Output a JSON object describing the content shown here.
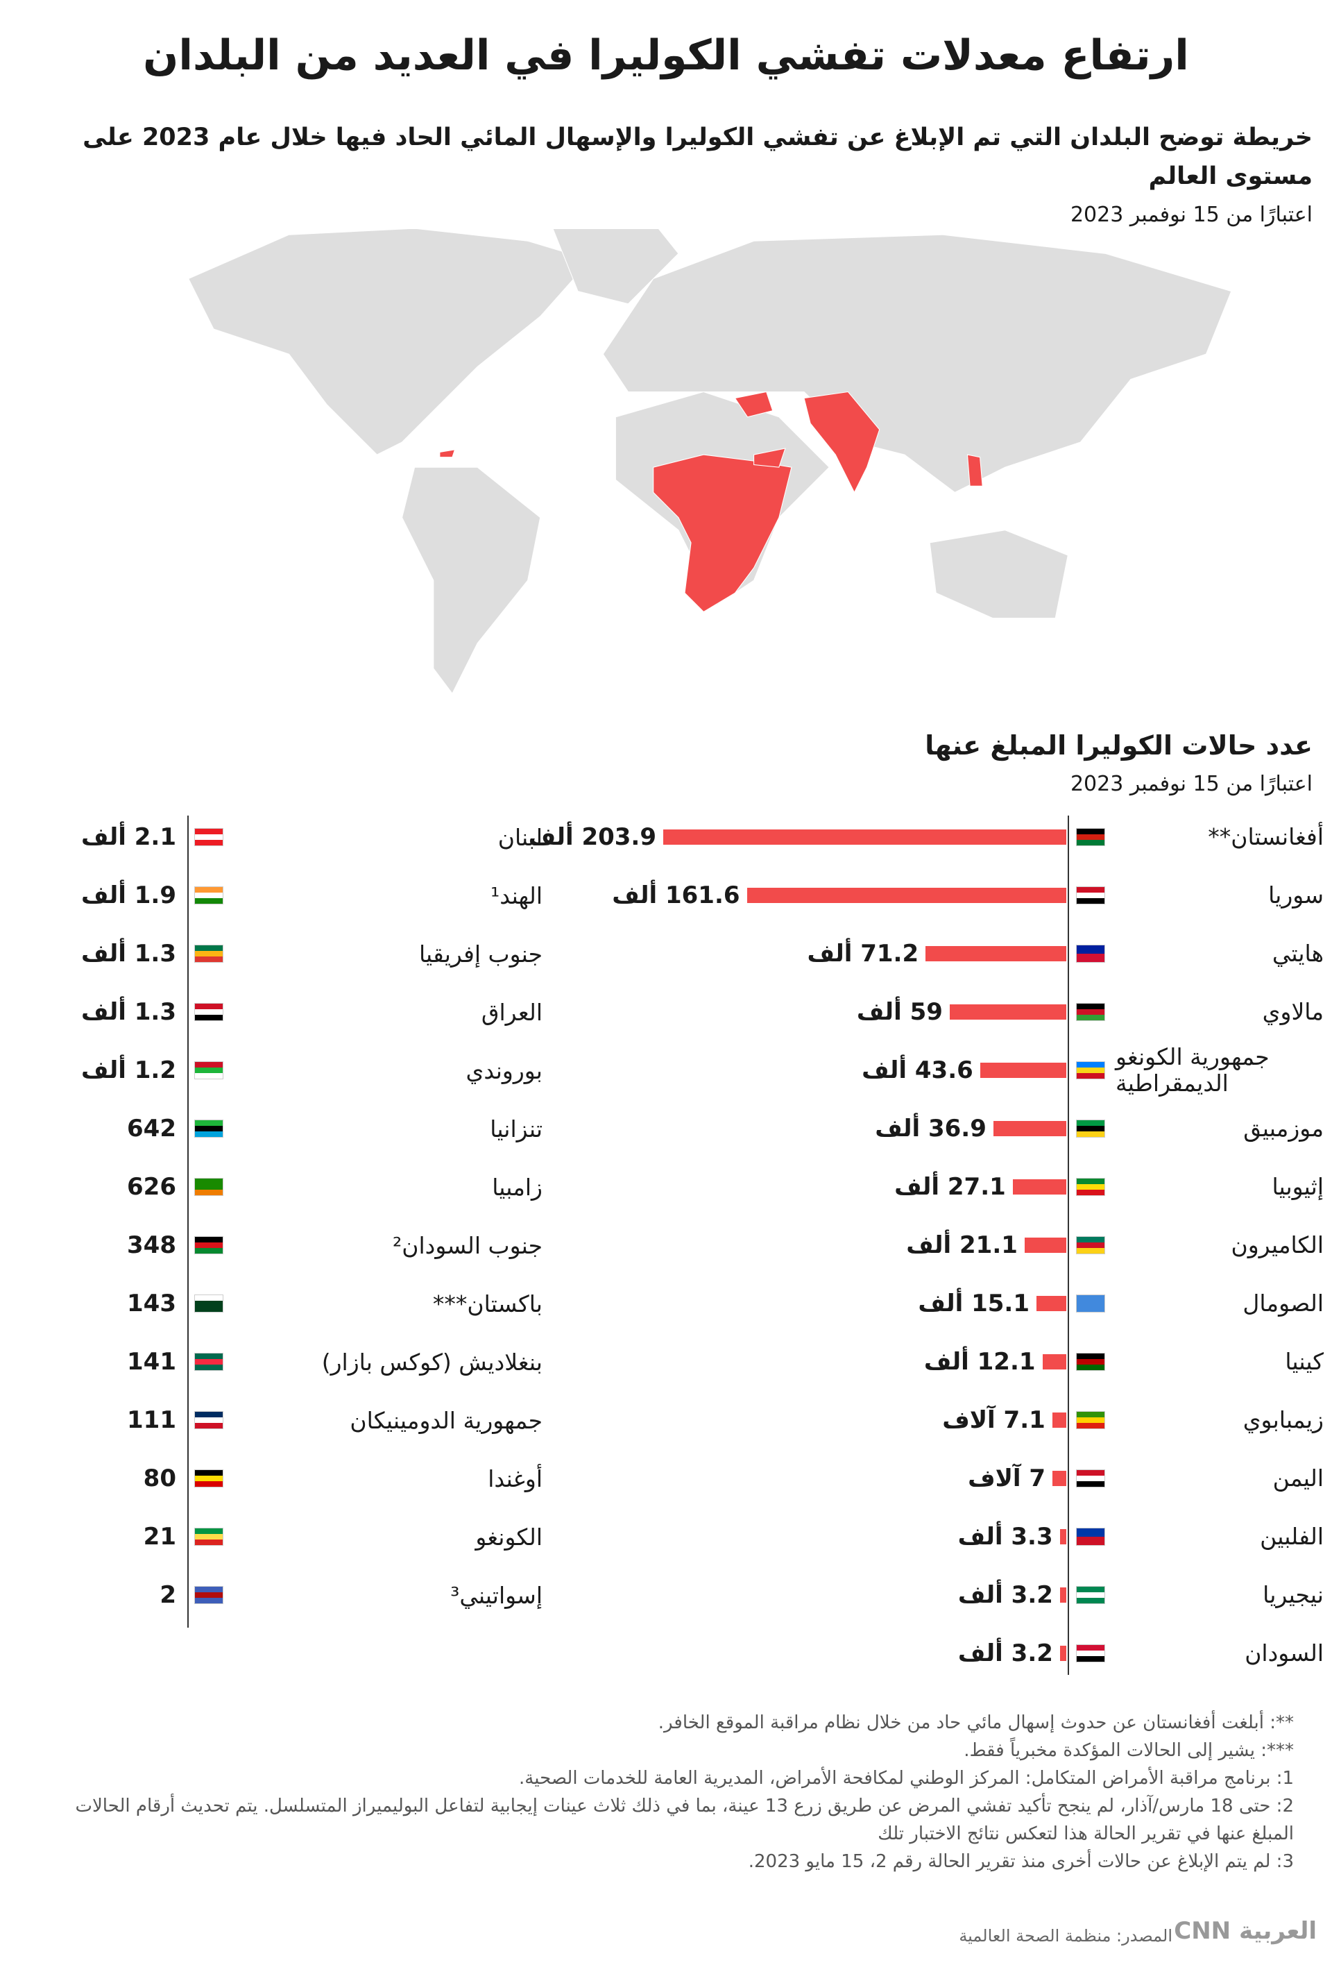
{
  "title": "ارتفاع معدلات تفشي الكوليرا في العديد من البلدان",
  "subtitle": "خريطة توضح البلدان التي تم الإبلاغ عن تفشي الكوليرا والإسهال المائي الحاد فيها خلال عام 2023 على مستوى العالم",
  "map_note": "اعتبارًا من 15 نوفمبر 2023",
  "chart_data": {
    "type": "bar",
    "title": "عدد حالات الكوليرا المبلغ عنها",
    "subtitle": "اعتبارًا من 15 نوفمبر 2023",
    "color": "#f24b4b",
    "categories": [
      "أفغانستان**",
      "سوريا",
      "هايتي",
      "مالاوي",
      "جمهورية الكونغو الديمقراطية",
      "موزمبيق",
      "إثيوبيا",
      "الكاميرون",
      "الصومال",
      "كينيا",
      "زيمبابوي",
      "اليمن",
      "الفلبين",
      "نيجيريا",
      "السودان"
    ],
    "values": [
      203900,
      161600,
      71200,
      59000,
      43600,
      36900,
      27100,
      21100,
      15100,
      12100,
      7100,
      7000,
      3300,
      3200,
      3200
    ],
    "value_labels": [
      "203.9 ألف",
      "161.6 ألف",
      "71.2 ألف",
      "59 ألف",
      "43.6 ألف",
      "36.9 ألف",
      "27.1 ألف",
      "21.1 ألف",
      "15.1 ألف",
      "12.1 ألف",
      "7.1 آلاف",
      "7 آلاف",
      "3.3 ألف",
      "3.2 ألف",
      "3.2 ألف"
    ]
  },
  "other_countries": {
    "rows": [
      [
        "لبنان",
        "2.1 ألف"
      ],
      [
        "الهند¹",
        "1.9 ألف"
      ],
      [
        "جنوب إفريقيا",
        "1.3 ألف"
      ],
      [
        "العراق",
        "1.3 ألف"
      ],
      [
        "بوروندي",
        "1.2 ألف"
      ],
      [
        "تنزانيا",
        "642"
      ],
      [
        "زامبيا",
        "626"
      ],
      [
        "جنوب السودان²",
        "348"
      ],
      [
        "باكستان***",
        "143"
      ],
      [
        "بنغلاديش (كوكس بازار)",
        "141"
      ],
      [
        "جمهورية الدومينيكان",
        "111"
      ],
      [
        "أوغندا",
        "80"
      ],
      [
        "الكونغو",
        "21"
      ],
      [
        "إسواتيني³",
        "2"
      ]
    ]
  },
  "footnotes": [
    "**: أبلغت أفغانستان عن حدوث إسهال مائي حاد من خلال نظام مراقبة الموقع الخافر.",
    "***: يشير إلى الحالات المؤكدة مخبرياً فقط.",
    "1: برنامج مراقبة الأمراض المتكامل: المركز الوطني لمكافحة الأمراض، المديرية العامة للخدمات الصحية.",
    "2: حتى 18 مارس/آذار، لم ينجح تأكيد تفشي المرض عن طريق زرع 13 عينة، بما في ذلك ثلاث عينات إيجابية لتفاعل البوليميراز المتسلسل. يتم تحديث أرقام الحالات المبلغ عنها في تقرير الحالة هذا لتعكس نتائج الاختبار تلك",
    "3: لم يتم الإبلاغ عن حالات أخرى منذ تقرير الحالة رقم 2، 15 مايو 2023."
  ],
  "source": "المصدر: منظمة الصحة العالمية",
  "logo": "CNN العربية"
}
